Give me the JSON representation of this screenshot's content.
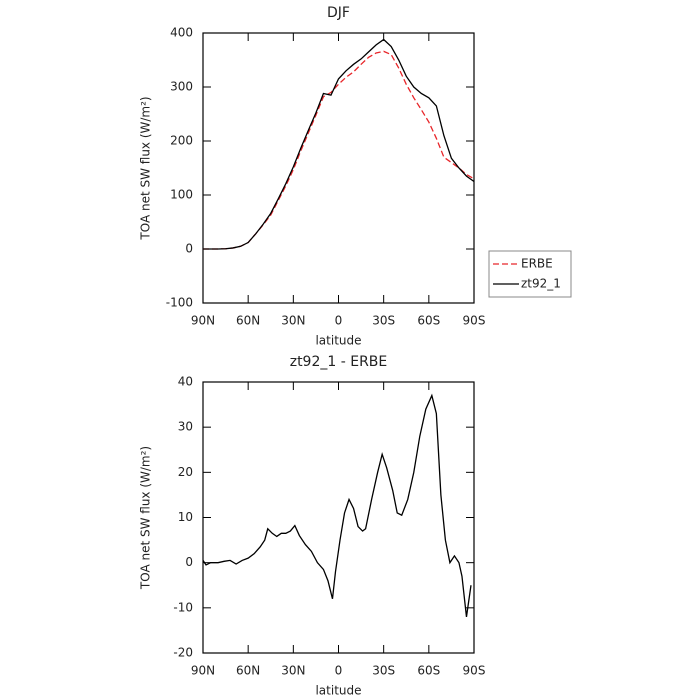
{
  "chart_data": [
    {
      "type": "line",
      "title": "DJF",
      "x_label": "latitude",
      "y_label": "TOA net SW flux (W/m²)",
      "x": [
        90,
        85,
        80,
        75,
        70,
        65,
        60,
        55,
        50,
        45,
        40,
        35,
        30,
        25,
        20,
        15,
        10,
        5,
        0,
        -5,
        -10,
        -15,
        -20,
        -25,
        -30,
        -35,
        -40,
        -45,
        -50,
        -55,
        -60,
        -65,
        -70,
        -75,
        -80,
        -85,
        -90
      ],
      "series": [
        {
          "name": "ERBE",
          "color": "#e8262a",
          "dash": true,
          "values": [
            0,
            0,
            0,
            0.5,
            2,
            5,
            12,
            28,
            45,
            63,
            90,
            117,
            147,
            182,
            215,
            248,
            282,
            290,
            305,
            318,
            328,
            342,
            355,
            363,
            366,
            360,
            335,
            305,
            280,
            258,
            235,
            205,
            170,
            160,
            150,
            138,
            130
          ]
        },
        {
          "name": "zt92_1",
          "color": "#000000",
          "dash": false,
          "values": [
            0,
            0,
            0,
            0.5,
            2,
            5,
            12,
            28,
            46,
            66,
            93,
            121,
            152,
            187,
            220,
            252,
            288,
            285,
            315,
            330,
            342,
            352,
            365,
            378,
            388,
            375,
            350,
            320,
            300,
            288,
            280,
            265,
            210,
            168,
            150,
            135,
            125
          ]
        }
      ],
      "xlim": [
        90,
        -90
      ],
      "xticks": [
        {
          "value": 90,
          "label": "90N"
        },
        {
          "value": 60,
          "label": "60N"
        },
        {
          "value": 30,
          "label": "30N"
        },
        0,
        {
          "value": -30,
          "label": "30S"
        },
        {
          "value": -60,
          "label": "60S"
        },
        {
          "value": -90,
          "label": "90S"
        }
      ],
      "ylim": [
        -100,
        400
      ],
      "yticks": [
        -100,
        0,
        100,
        200,
        300,
        400
      ],
      "legend": "outside-right"
    },
    {
      "type": "line",
      "title": "zt92_1 - ERBE",
      "x_label": "latitude",
      "y_label": "TOA net SW flux (W/m²)",
      "x": [
        90,
        88,
        85,
        80,
        76,
        72,
        68,
        64,
        60,
        56,
        52,
        49,
        47,
        44,
        41,
        38,
        35,
        32,
        29,
        26,
        22,
        18,
        14,
        10,
        7,
        4,
        2,
        -1,
        -4,
        -7,
        -10,
        -13,
        -16,
        -18,
        -22,
        -26,
        -29,
        -32,
        -36,
        -39,
        -42,
        -46,
        -50,
        -54,
        -58,
        -62,
        -65,
        -68,
        -71,
        -74,
        -77,
        -80,
        -82,
        -85,
        -88
      ],
      "series": [
        {
          "color": "#000000",
          "dash": false,
          "values": [
            0.5,
            -0.5,
            0,
            0,
            0.3,
            0.5,
            -0.3,
            0.5,
            1,
            2,
            3.5,
            5,
            7.5,
            6.5,
            5.8,
            6.5,
            6.5,
            7,
            8.2,
            6,
            4,
            2.5,
            0,
            -1.5,
            -4,
            -8,
            -2,
            5,
            11,
            14,
            12,
            8,
            7,
            7.5,
            14,
            20,
            24,
            21,
            16,
            11,
            10.5,
            14,
            20,
            28,
            34,
            37,
            33,
            15,
            5,
            0,
            1.5,
            0,
            -3,
            -12,
            -5
          ]
        }
      ],
      "xlim": [
        90,
        -90
      ],
      "xticks": [
        {
          "value": 90,
          "label": "90N"
        },
        {
          "value": 60,
          "label": "60N"
        },
        {
          "value": 30,
          "label": "30N"
        },
        0,
        {
          "value": -30,
          "label": "30S"
        },
        {
          "value": -60,
          "label": "60S"
        },
        {
          "value": -90,
          "label": "90S"
        }
      ],
      "ylim": [
        -20,
        40
      ],
      "yticks": [
        -20,
        -10,
        0,
        10,
        20,
        30,
        40
      ]
    }
  ]
}
